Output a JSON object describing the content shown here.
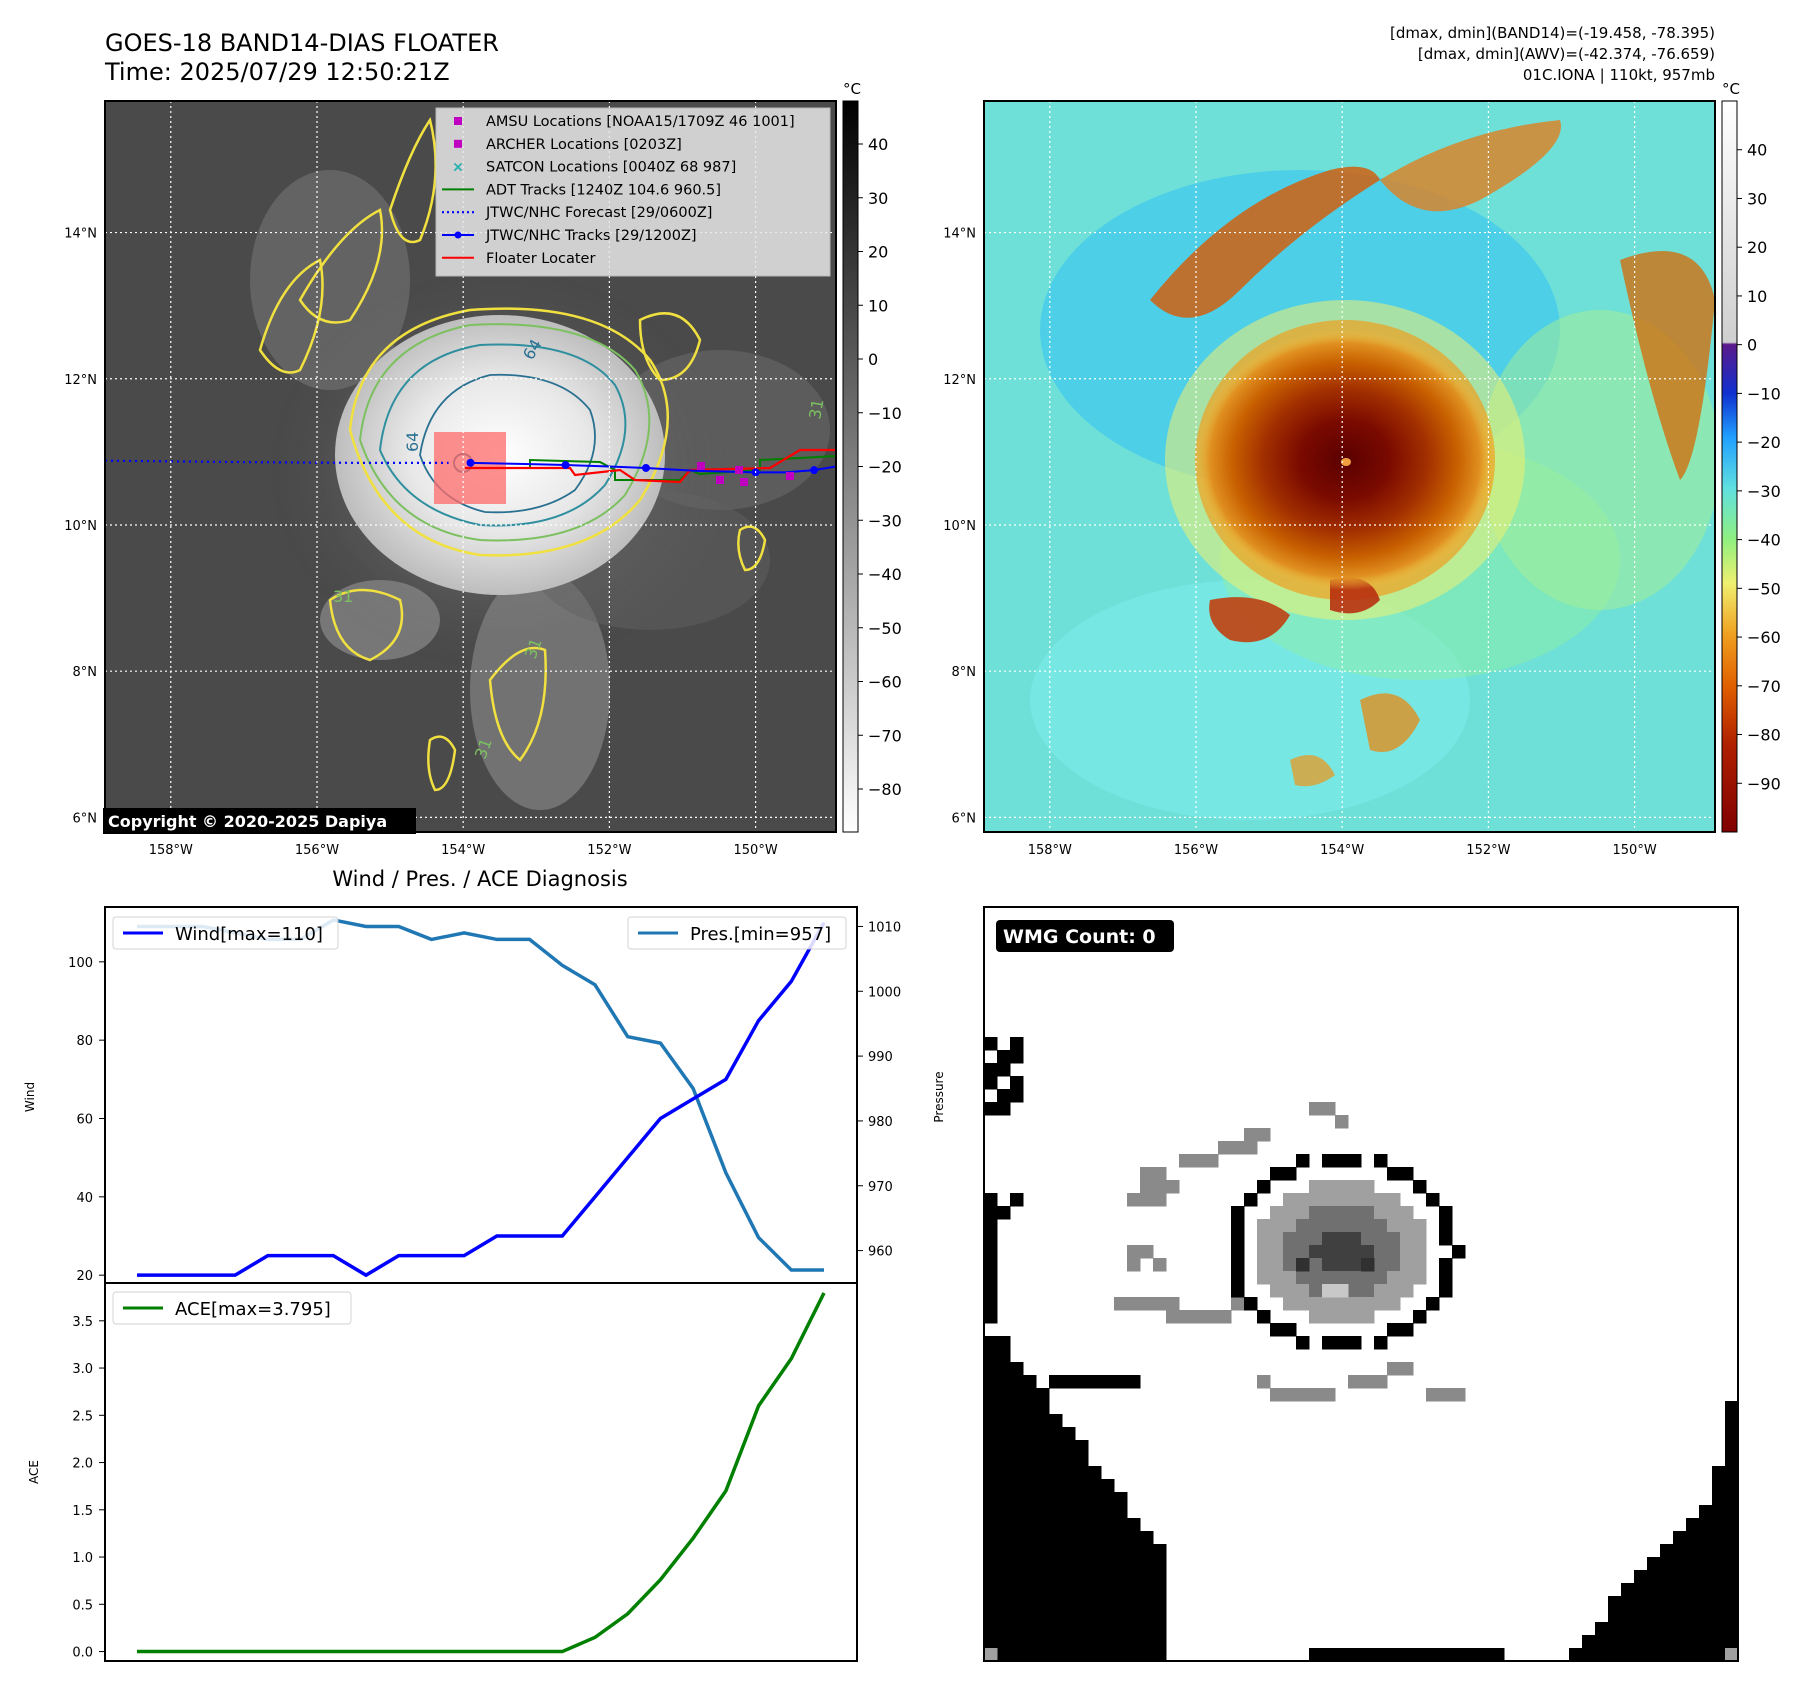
{
  "header": {
    "title_line1": "GOES-18 BAND14-DIAS FLOATER",
    "title_line2": "Time: 2025/07/29 12:50:21Z",
    "stats_line1": "[dmax, dmin](BAND14)=(-19.458, -78.395)",
    "stats_line2": "[dmax, dmin](AWV)=(-42.374, -76.659)",
    "stats_line3": "01C.IONA | 110kt, 957mb",
    "unit_left": "°C",
    "unit_right": "°C",
    "copyright": "Copyright © 2020-2025 Dapiya"
  },
  "map": {
    "lat_labels": [
      "14°N",
      "12°N",
      "10°N",
      "8°N",
      "6°N"
    ],
    "lat_values": [
      14,
      12,
      10,
      8,
      6
    ],
    "lon_labels": [
      "158°W",
      "156°W",
      "154°W",
      "152°W",
      "150°W"
    ],
    "lon_values": [
      -158,
      -156,
      -154,
      -152,
      -150
    ],
    "lon_range": [
      -158.9,
      -148.9
    ],
    "lat_range": [
      5.8,
      15.8
    ],
    "storm_center": {
      "lon": -154.0,
      "lat": 10.85
    },
    "contour_labels": [
      "64",
      "64",
      "31",
      "31",
      "31",
      "31"
    ],
    "legend": [
      {
        "label": "AMSU Locations [NOAA15/1709Z 46 1001]",
        "color": "#c000c0",
        "marker": "square"
      },
      {
        "label": "ARCHER Locations [0203Z]",
        "color": "#c000c0",
        "marker": "square"
      },
      {
        "label": "SATCON Locations [0040Z 68 987]",
        "color": "#20b0b0",
        "marker": "x"
      },
      {
        "label": "ADT Tracks [1240Z 104.6 960.5]",
        "color": "#008000",
        "marker": "line"
      },
      {
        "label": "JTWC/NHC Forecast [29/0600Z]",
        "color": "#0000ff",
        "marker": "dotted"
      },
      {
        "label": "JTWC/NHC Tracks [29/1200Z]",
        "color": "#0000ff",
        "marker": "line-dot"
      },
      {
        "label": "Floater Locater",
        "color": "#ff0000",
        "marker": "line"
      }
    ],
    "track_lons": [
      -153.9,
      -153.0,
      -152.6,
      -152.0,
      -151.5,
      -150.8,
      -150.0,
      -149.6,
      -149.2,
      -148.9
    ],
    "track_lats": [
      10.85,
      10.83,
      10.82,
      10.8,
      10.78,
      10.74,
      10.72,
      10.72,
      10.75,
      10.8
    ],
    "forecast_lons": [
      -158.9,
      -157.0,
      -155.5,
      -154.2
    ],
    "forecast_lats": [
      10.88,
      10.86,
      10.85,
      10.85
    ]
  },
  "colorbar_left": {
    "ticks": [
      40,
      30,
      20,
      10,
      0,
      -10,
      -20,
      -30,
      -40,
      -50,
      -60,
      -70,
      -80
    ],
    "range": [
      -88,
      48
    ]
  },
  "colorbar_right": {
    "ticks": [
      40,
      30,
      20,
      10,
      0,
      -10,
      -20,
      -30,
      -40,
      -50,
      -60,
      -70,
      -80,
      -90
    ],
    "range": [
      -100,
      50
    ]
  },
  "chart_data": [
    {
      "type": "line",
      "title": "Wind / Pres. / ACE Diagnosis",
      "ylabel": "Wind",
      "ylabel_right": "Pressure",
      "ylim": [
        18,
        114
      ],
      "ylim_right": [
        955,
        1013
      ],
      "yticks": [
        20,
        40,
        60,
        80,
        100
      ],
      "yticks_right": [
        960,
        970,
        980,
        990,
        1000,
        1010
      ],
      "x": [
        0,
        1,
        2,
        3,
        4,
        5,
        6,
        7,
        8,
        9,
        10,
        11,
        12,
        13,
        14,
        15,
        16,
        17,
        18,
        19,
        20,
        21
      ],
      "series": [
        {
          "name": "Wind[max=110]",
          "axis": "left",
          "color": "#0000ff",
          "values": [
            20,
            20,
            20,
            20,
            25,
            25,
            25,
            20,
            25,
            25,
            25,
            30,
            30,
            30,
            40,
            50,
            60,
            65,
            70,
            85,
            95,
            110
          ]
        },
        {
          "name": "Pres.[min=957]",
          "axis": "right",
          "color": "#1f77b4",
          "values": [
            1010,
            1010,
            1010,
            1009,
            1008,
            1008,
            1011,
            1010,
            1010,
            1008,
            1009,
            1008,
            1008,
            1004,
            1001,
            993,
            992,
            985,
            972,
            962,
            957,
            957
          ]
        }
      ]
    },
    {
      "type": "line",
      "ylabel": "ACE",
      "ylim": [
        -0.1,
        3.9
      ],
      "yticks": [
        0.0,
        0.5,
        1.0,
        1.5,
        2.0,
        2.5,
        3.0,
        3.5
      ],
      "x": [
        0,
        1,
        2,
        3,
        4,
        5,
        6,
        7,
        8,
        9,
        10,
        11,
        12,
        13,
        14,
        15,
        16,
        17,
        18,
        19,
        20,
        21
      ],
      "series": [
        {
          "name": "ACE[max=3.795]",
          "color": "#008000",
          "values": [
            0,
            0,
            0,
            0,
            0,
            0,
            0,
            0,
            0,
            0,
            0,
            0,
            0,
            0,
            0.15,
            0.4,
            0.76,
            1.2,
            1.7,
            2.6,
            3.1,
            3.795
          ]
        }
      ]
    }
  ],
  "wmg": {
    "label": "WMG Count: 0"
  }
}
